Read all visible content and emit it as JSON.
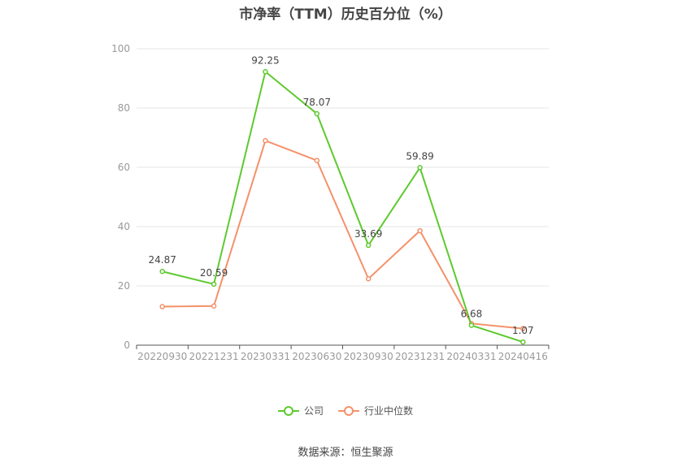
{
  "chart_data": {
    "type": "line",
    "title": "市净率（TTM）历史百分位（%）",
    "categories": [
      "20220930",
      "20221231",
      "20230331",
      "20230630",
      "20230930",
      "20231231",
      "20240331",
      "20240416"
    ],
    "series": [
      {
        "name": "公司",
        "color": "#5ec92f",
        "values": [
          24.87,
          20.59,
          92.25,
          78.07,
          33.69,
          59.89,
          6.68,
          1.07
        ],
        "labels": [
          "24.87",
          "20.59",
          "92.25",
          "78.07",
          "33.69",
          "59.89",
          "6.68",
          "1.07"
        ]
      },
      {
        "name": "行业中位数",
        "color": "#f4916a",
        "values": [
          13.0,
          13.2,
          69.0,
          62.3,
          22.4,
          38.6,
          7.3,
          5.6
        ]
      }
    ],
    "ylim": [
      0,
      100
    ],
    "yticks": [
      "0",
      "20",
      "40",
      "60",
      "80",
      "100"
    ],
    "grid": true,
    "legend": "bottom-center"
  },
  "source": "数据来源：恒生聚源"
}
